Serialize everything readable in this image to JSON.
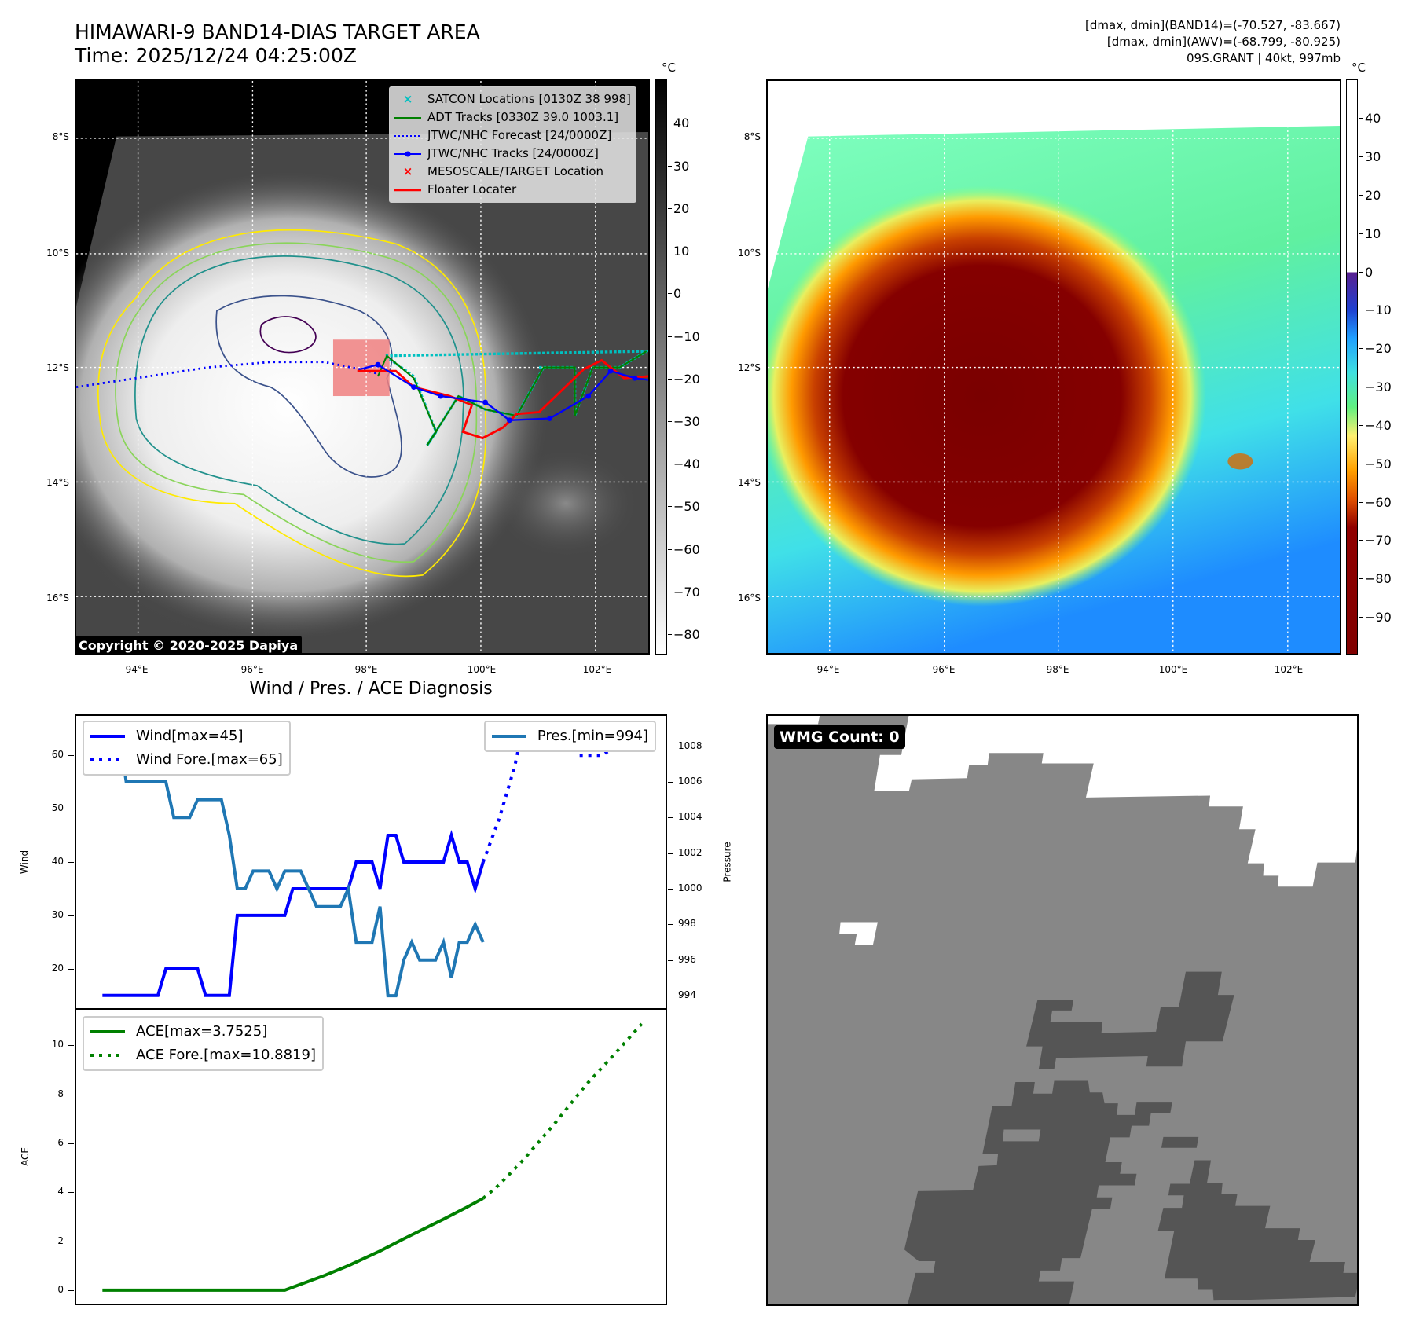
{
  "header": {
    "title_line1": "HIMAWARI-9 BAND14-DIAS TARGET AREA",
    "title_line2": "Time: 2025/12/24 04:25:00Z",
    "info_line1": "[dmax, dmin](BAND14)=(-70.527, -83.667)",
    "info_line2": "[dmax, dmin](AWV)=(-68.799, -80.925)",
    "info_line3": "09S.GRANT | 40kt, 997mb"
  },
  "maps": {
    "lon_labels": [
      "94°E",
      "96°E",
      "98°E",
      "100°E",
      "102°E"
    ],
    "lat_labels": [
      "8°S",
      "10°S",
      "12°S",
      "14°S",
      "16°S"
    ],
    "copyright": "Copyright © 2020-2025 Dapiya",
    "legend": [
      {
        "symbol": "×",
        "label": "SATCON Locations [0130Z 38 998]",
        "color": "#00c0c0"
      },
      {
        "symbol": "line",
        "label": "ADT Tracks [0330Z 39.0 1003.1]",
        "color": "#008000"
      },
      {
        "symbol": "dotted",
        "label": "JTWC/NHC Forecast [24/0000Z]",
        "color": "#0000ff"
      },
      {
        "symbol": "line-dot",
        "label": "JTWC/NHC Tracks [24/0000Z]",
        "color": "#0000ff"
      },
      {
        "symbol": "×",
        "label": "MESOSCALE/TARGET Location",
        "color": "#ff0000"
      },
      {
        "symbol": "line",
        "label": "Floater Locater",
        "color": "#ff0000"
      }
    ],
    "left_colorbar": {
      "unit": "°C",
      "min": -84.6,
      "max": 50.4,
      "ticks": [
        40,
        30,
        20,
        10,
        0,
        -10,
        -20,
        -30,
        -40,
        -50,
        -60,
        -70,
        -80
      ],
      "tick_labels": [
        "40",
        "30",
        "20",
        "10",
        "0",
        "−10",
        "−20",
        "−30",
        "−40",
        "−50",
        "−60",
        "−70",
        "−80"
      ]
    },
    "right_colorbar": {
      "unit": "°C",
      "min": -99.6,
      "max": 50.3,
      "ticks": [
        40,
        30,
        20,
        10,
        0,
        -10,
        -20,
        -30,
        -40,
        -50,
        -60,
        -70,
        -80,
        -90
      ],
      "tick_labels": [
        "40",
        "30",
        "20",
        "10",
        "0",
        "−10",
        "−20",
        "−30",
        "−40",
        "−50",
        "−60",
        "−70",
        "−80",
        "−90"
      ]
    }
  },
  "diagnosis": {
    "subtitle": "Wind / Pres. / ACE Diagnosis",
    "wind_legend": [
      "Wind[max=45]",
      "Wind Fore.[max=65]"
    ],
    "pres_legend": "Pres.[min=994]",
    "ace_legend": [
      "ACE[max=3.7525]",
      "ACE Fore.[max=10.8819]"
    ]
  },
  "wmg": {
    "label": "WMG Count: 0"
  },
  "colors": {
    "wind": "#0000ff",
    "pressure": "#1f77b4",
    "ace": "#008000"
  },
  "chart_data": [
    {
      "type": "line",
      "title": "Wind / Pres. / ACE Diagnosis",
      "ylabel": "Wind",
      "y2label": "Pressure",
      "xlim": [
        -3.3,
        71
      ],
      "ylim": [
        12.6,
        67.4
      ],
      "y2lim": [
        993.3,
        1009.7
      ],
      "yticks": [
        20,
        30,
        40,
        50,
        60
      ],
      "y2ticks": [
        994,
        996,
        998,
        1000,
        1002,
        1004,
        1006,
        1008
      ],
      "series": [
        {
          "name": "Wind[max=45]",
          "axis": "left",
          "style": "solid",
          "x": [
            0,
            7,
            8,
            12,
            13,
            16,
            17,
            23,
            24,
            31,
            32,
            34,
            35,
            36,
            37,
            38,
            43,
            44,
            45,
            46,
            47,
            48
          ],
          "y": [
            15,
            15,
            20,
            20,
            15,
            15,
            30,
            30,
            35,
            35,
            40,
            40,
            35,
            45,
            45,
            40,
            40,
            45,
            40,
            40,
            35,
            40
          ]
        },
        {
          "name": "Wind Fore.[max=65]",
          "axis": "left",
          "style": "dotted",
          "x": [
            48,
            50,
            52,
            53,
            59,
            60,
            63,
            65,
            68
          ],
          "y": [
            40,
            48,
            58,
            65,
            65,
            60,
            60,
            62,
            65
          ]
        },
        {
          "name": "Pres.[min=994]",
          "axis": "right",
          "style": "solid",
          "x": [
            0,
            2,
            3,
            8,
            9,
            11,
            12,
            15,
            16,
            17,
            18,
            19,
            21,
            22,
            23,
            25,
            27,
            30,
            31,
            32,
            34,
            35,
            36,
            37,
            38,
            39,
            40,
            42,
            43,
            44,
            45,
            46,
            47,
            48
          ],
          "y": [
            1009,
            1009,
            1006,
            1006,
            1004,
            1004,
            1005,
            1005,
            1003,
            1000,
            1000,
            1001,
            1001,
            1000,
            1001,
            1001,
            999,
            999,
            1000,
            997,
            997,
            999,
            994,
            994,
            996,
            997,
            996,
            996,
            997,
            995,
            997,
            997,
            998,
            997
          ]
        }
      ]
    },
    {
      "type": "line",
      "ylabel": "ACE",
      "xlim": [
        -3.3,
        71
      ],
      "ylim": [
        -0.55,
        11.46
      ],
      "yticks": [
        0,
        2,
        4,
        6,
        8,
        10
      ],
      "series": [
        {
          "name": "ACE[max=3.7525]",
          "style": "solid",
          "x": [
            0,
            23,
            28,
            31,
            35,
            38,
            43,
            46,
            48
          ],
          "y": [
            0,
            0,
            0.6,
            1.0,
            1.6,
            2.1,
            2.9,
            3.4,
            3.7525
          ]
        },
        {
          "name": "ACE Fore.[max=10.8819]",
          "style": "dotted",
          "x": [
            48,
            50,
            53,
            57,
            61,
            65,
            68
          ],
          "y": [
            3.7525,
            4.3,
            5.3,
            6.8,
            8.4,
            9.8,
            10.8819
          ]
        }
      ]
    }
  ]
}
